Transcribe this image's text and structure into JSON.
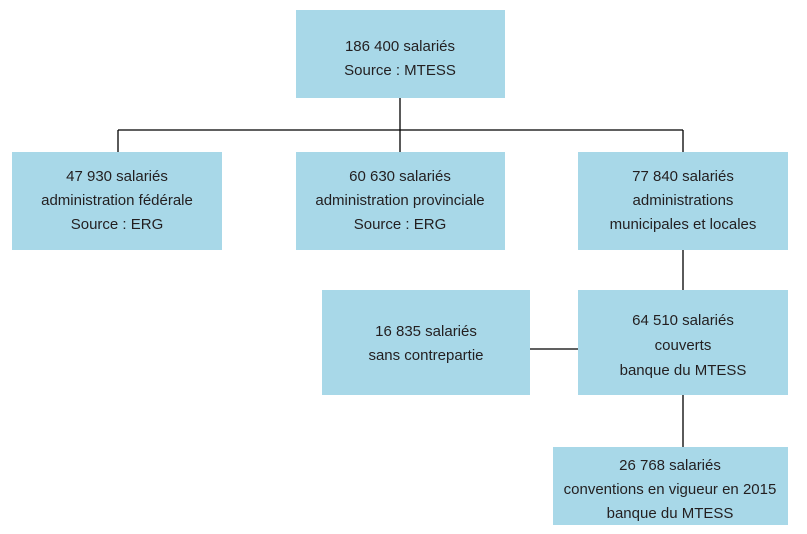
{
  "nodes": [
    {
      "lines": [
        "186 400 salariés",
        "Source : MTESS"
      ]
    },
    {
      "lines": [
        "47 930 salariés",
        "administration fédérale",
        "Source : ERG"
      ]
    },
    {
      "lines": [
        "60 630 salariés",
        "administration provinciale",
        "Source : ERG"
      ]
    },
    {
      "lines": [
        "77 840 salariés",
        "administrations",
        "municipales et locales"
      ]
    },
    {
      "lines": [
        "16 835 salariés",
        "sans contrepartie"
      ]
    },
    {
      "lines": [
        "64 510 salariés",
        "couverts",
        "banque du MTESS"
      ]
    },
    {
      "lines": [
        "26 768 salariés",
        "conventions en vigueur en 2015",
        "banque du MTESS"
      ]
    }
  ]
}
